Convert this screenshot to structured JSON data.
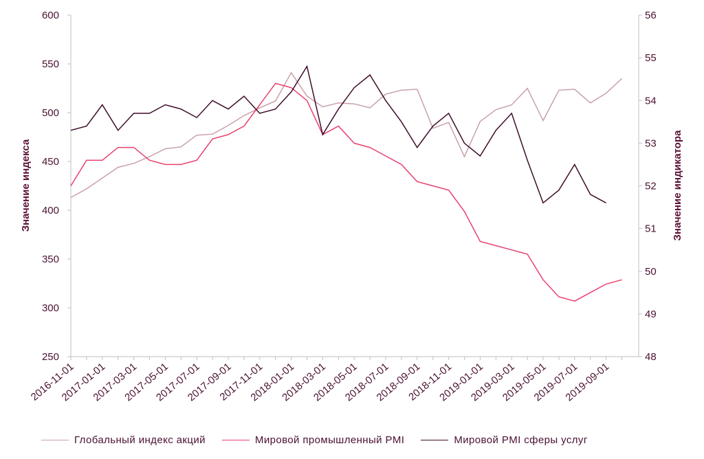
{
  "chart_data": {
    "type": "line",
    "x": [
      "2016-11-01",
      "2016-12-01",
      "2017-01-01",
      "2017-02-01",
      "2017-03-01",
      "2017-04-01",
      "2017-05-01",
      "2017-06-01",
      "2017-07-01",
      "2017-08-01",
      "2017-09-01",
      "2017-10-01",
      "2017-11-01",
      "2017-12-01",
      "2018-01-01",
      "2018-02-01",
      "2018-03-01",
      "2018-04-01",
      "2018-05-01",
      "2018-06-01",
      "2018-07-01",
      "2018-08-01",
      "2018-09-01",
      "2018-10-01",
      "2018-11-01",
      "2018-12-01",
      "2019-01-01",
      "2019-02-01",
      "2019-03-01",
      "2019-04-01",
      "2019-05-01",
      "2019-06-01",
      "2019-07-01",
      "2019-08-01",
      "2019-09-01",
      "2019-10-01"
    ],
    "x_tick_labels": [
      "2016-11-01",
      "2017-01-01",
      "2017-03-01",
      "2017-05-01",
      "2017-07-01",
      "2017-09-01",
      "2017-11-01",
      "2018-01-01",
      "2018-03-01",
      "2018-05-01",
      "2018-07-01",
      "2018-09-01",
      "2018-11-01",
      "2019-01-01",
      "2019-03-01",
      "2019-05-01",
      "2019-07-01",
      "2019-09-01"
    ],
    "y_left": {
      "label": "Значение индекса",
      "ylim": [
        250,
        600
      ],
      "ticks": [
        "250",
        "300",
        "350",
        "400",
        "450",
        "500",
        "550",
        "600"
      ]
    },
    "y_right": {
      "label": "Значение индикатора",
      "ylim": [
        48,
        56
      ],
      "ticks": [
        "48",
        "49",
        "50",
        "51",
        "52",
        "53",
        "54",
        "55",
        "56"
      ]
    },
    "series": [
      {
        "name": "Глобальный индекс акций",
        "axis": "left",
        "color": "#c9a0aa",
        "values": [
          413,
          422,
          433,
          444,
          448,
          455,
          463,
          465,
          477,
          478,
          487,
          497,
          505,
          512,
          541,
          517,
          506,
          510,
          509,
          505,
          519,
          523,
          524,
          484,
          490,
          455,
          491,
          503,
          508,
          525,
          492,
          523,
          524,
          510,
          520,
          535
        ]
      },
      {
        "name": "Мировой промышленный PMI",
        "axis": "right",
        "color": "#e8416d",
        "values": [
          52.0,
          52.6,
          52.6,
          52.9,
          52.9,
          52.6,
          52.5,
          52.5,
          52.6,
          53.1,
          53.2,
          53.4,
          53.9,
          54.4,
          54.3,
          54.0,
          53.2,
          53.4,
          53.0,
          52.9,
          52.7,
          52.5,
          52.1,
          52.0,
          51.9,
          51.4,
          50.7,
          50.6,
          50.5,
          50.4,
          49.8,
          49.4,
          49.3,
          49.5,
          49.7,
          49.8
        ]
      },
      {
        "name": "Мировой PMI сферы услуг",
        "axis": "right",
        "color": "#3d0c2a",
        "values": [
          53.3,
          53.4,
          53.9,
          53.3,
          53.7,
          53.7,
          53.9,
          53.8,
          53.6,
          54.0,
          53.8,
          54.1,
          53.7,
          53.8,
          54.2,
          54.8,
          53.2,
          53.8,
          54.3,
          54.6,
          54.0,
          53.5,
          52.9,
          53.4,
          53.7,
          53.0,
          52.7,
          53.3,
          53.7,
          52.6,
          51.6,
          51.9,
          52.5,
          51.8,
          51.6,
          null
        ]
      }
    ],
    "legend_position": "bottom",
    "grid": false
  }
}
